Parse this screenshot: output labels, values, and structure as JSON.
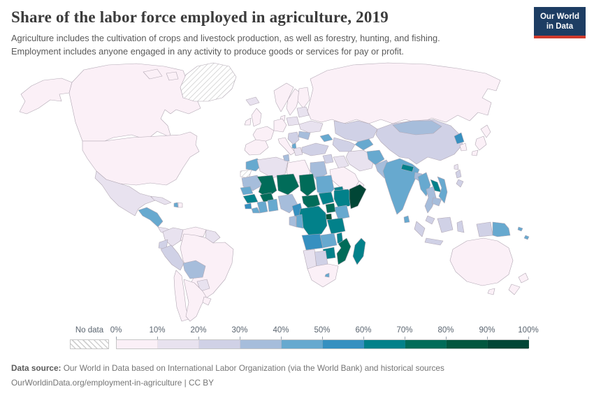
{
  "header": {
    "title": "Share of the labor force employed in agriculture, 2019",
    "subtitle_line1": "Agriculture includes the cultivation of crops and livestock production, as well as forestry, hunting, and fishing.",
    "subtitle_line2": "Employment includes anyone engaged in any activity to produce goods or services for pay or profit.",
    "logo_line1": "Our World",
    "logo_line2": "in Data",
    "logo_bg_color": "#1d3d63",
    "logo_accent_color": "#cf3a2c"
  },
  "legend": {
    "no_data_label": "No data",
    "tick_labels": [
      "0%",
      "10%",
      "20%",
      "30%",
      "40%",
      "50%",
      "60%",
      "70%",
      "80%",
      "90%",
      "100%"
    ],
    "bins": [
      {
        "range": "0-10%",
        "color": "#fbf0f7"
      },
      {
        "range": "10-20%",
        "color": "#e8e2ef"
      },
      {
        "range": "20-30%",
        "color": "#d0d1e6"
      },
      {
        "range": "30-40%",
        "color": "#a6bddb"
      },
      {
        "range": "40-50%",
        "color": "#67a9cf"
      },
      {
        "range": "50-60%",
        "color": "#3690c0"
      },
      {
        "range": "60-70%",
        "color": "#02818a"
      },
      {
        "range": "70-80%",
        "color": "#016c59"
      },
      {
        "range": "80-90%",
        "color": "#02573f"
      },
      {
        "range": "90-100%",
        "color": "#014636"
      }
    ]
  },
  "footer": {
    "datasource_label": "Data source:",
    "datasource_text": " Our World in Data based on International Labor Organization (via the World Bank) and historical sources",
    "url_line": "OurWorldinData.org/employment-in-agriculture | CC BY"
  },
  "chart_data": {
    "type": "choropleth",
    "title": "Share of the labor force employed in agriculture, 2019",
    "unit": "% of labor force",
    "bin_ranges": [
      "0-10%",
      "10-20%",
      "20-30%",
      "30-40%",
      "40-50%",
      "50-60%",
      "60-70%",
      "70-80%",
      "80-90%",
      "90-100%"
    ],
    "no_data_fill": "url(#hatch)",
    "no_data_regions": [
      "Greenland",
      "Western Sahara"
    ],
    "regions": {
      "united-states": {
        "label": "United States",
        "range": "0-10%",
        "color": "#fbf0f7"
      },
      "canada": {
        "label": "Canada",
        "range": "0-10%",
        "color": "#fbf0f7"
      },
      "greenland": {
        "label": "Greenland",
        "range": "No data",
        "color": "url(#hatch)"
      },
      "iceland": {
        "label": "Iceland",
        "range": "10-20%",
        "color": "#e8e2ef"
      },
      "mexico": {
        "label": "Mexico",
        "range": "10-20%",
        "color": "#e8e2ef"
      },
      "central-america": {
        "label": "Guatemala, Honduras & Nicaragua",
        "range": "40-50%",
        "color": "#67a9cf"
      },
      "costa-rica-panama": {
        "label": "Costa Rica & Panama",
        "range": "10-20%",
        "color": "#e8e2ef"
      },
      "cuba": {
        "label": "Cuba",
        "range": "10-20%",
        "color": "#e8e2ef"
      },
      "haiti": {
        "label": "Haiti",
        "range": "40-50%",
        "color": "#67a9cf"
      },
      "dominican-republic": {
        "label": "Dominican Republic",
        "range": "0-10%",
        "color": "#fbf0f7"
      },
      "colombia": {
        "label": "Colombia",
        "range": "10-20%",
        "color": "#e8e2ef"
      },
      "venezuela": {
        "label": "Venezuela",
        "range": "0-10%",
        "color": "#fbf0f7"
      },
      "guyanas": {
        "label": "Guyana & Suriname",
        "range": "10-20%",
        "color": "#e8e2ef"
      },
      "ecuador": {
        "label": "Ecuador",
        "range": "20-30%",
        "color": "#d0d1e6"
      },
      "peru": {
        "label": "Peru",
        "range": "20-30%",
        "color": "#d0d1e6"
      },
      "brazil": {
        "label": "Brazil",
        "range": "0-10%",
        "color": "#fbf0f7"
      },
      "bolivia": {
        "label": "Bolivia",
        "range": "30-40%",
        "color": "#a6bddb"
      },
      "paraguay": {
        "label": "Paraguay",
        "range": "10-20%",
        "color": "#e8e2ef"
      },
      "chile": {
        "label": "Chile",
        "range": "0-10%",
        "color": "#fbf0f7"
      },
      "argentina": {
        "label": "Argentina",
        "range": "0-10%",
        "color": "#fbf0f7"
      },
      "uruguay": {
        "label": "Uruguay",
        "range": "0-10%",
        "color": "#fbf0f7"
      },
      "united-kingdom": {
        "label": "United Kingdom",
        "range": "0-10%",
        "color": "#fbf0f7"
      },
      "ireland": {
        "label": "Ireland",
        "range": "0-10%",
        "color": "#fbf0f7"
      },
      "norway": {
        "label": "Norway",
        "range": "0-10%",
        "color": "#fbf0f7"
      },
      "sweden": {
        "label": "Sweden",
        "range": "0-10%",
        "color": "#fbf0f7"
      },
      "finland": {
        "label": "Finland",
        "range": "0-10%",
        "color": "#fbf0f7"
      },
      "denmark": {
        "label": "Denmark",
        "range": "0-10%",
        "color": "#fbf0f7"
      },
      "iberia": {
        "label": "Spain & Portugal",
        "range": "0-10%",
        "color": "#fbf0f7"
      },
      "france": {
        "label": "France",
        "range": "0-10%",
        "color": "#fbf0f7"
      },
      "central-europe": {
        "label": "Germany & Central Europe",
        "range": "0-10%",
        "color": "#fbf0f7"
      },
      "italy": {
        "label": "Italy",
        "range": "0-10%",
        "color": "#fbf0f7"
      },
      "poland": {
        "label": "Poland",
        "range": "10-20%",
        "color": "#e8e2ef"
      },
      "baltics": {
        "label": "Baltic states & Belarus",
        "range": "10-20%",
        "color": "#e8e2ef"
      },
      "ukraine": {
        "label": "Ukraine",
        "range": "10-20%",
        "color": "#e8e2ef"
      },
      "romania": {
        "label": "Romania & Moldova",
        "range": "30-40%",
        "color": "#a6bddb"
      },
      "balkans": {
        "label": "Balkans",
        "range": "20-30%",
        "color": "#d0d1e6"
      },
      "albania": {
        "label": "Albania",
        "range": "40-50%",
        "color": "#67a9cf"
      },
      "greece": {
        "label": "Greece",
        "range": "10-20%",
        "color": "#e8e2ef"
      },
      "russia": {
        "label": "Russia",
        "range": "0-10%",
        "color": "#fbf0f7"
      },
      "kazakhstan": {
        "label": "Kazakhstan",
        "range": "20-30%",
        "color": "#d0d1e6"
      },
      "uzbekistan-turkmenistan": {
        "label": "Uzbekistan & Turkmenistan",
        "range": "20-30%",
        "color": "#d0d1e6"
      },
      "kyrgyzstan-tajikistan": {
        "label": "Kyrgyzstan & Tajikistan",
        "range": "40-50%",
        "color": "#67a9cf"
      },
      "caucasus": {
        "label": "Georgia, Armenia & Azerbaijan",
        "range": "40-50%",
        "color": "#67a9cf"
      },
      "turkey": {
        "label": "Turkey",
        "range": "20-30%",
        "color": "#d0d1e6"
      },
      "levant": {
        "label": "Syria & Levant",
        "range": "20-30%",
        "color": "#d0d1e6"
      },
      "iraq": {
        "label": "Iraq",
        "range": "10-20%",
        "color": "#e8e2ef"
      },
      "iran": {
        "label": "Iran",
        "range": "10-20%",
        "color": "#e8e2ef"
      },
      "saudi-arabia": {
        "label": "Saudi Arabia",
        "range": "0-10%",
        "color": "#fbf0f7"
      },
      "yemen": {
        "label": "Yemen",
        "range": "30-40%",
        "color": "#a6bddb"
      },
      "oman": {
        "label": "Oman",
        "range": "0-10%",
        "color": "#fbf0f7"
      },
      "afghanistan": {
        "label": "Afghanistan",
        "range": "40-50%",
        "color": "#67a9cf"
      },
      "pakistan": {
        "label": "Pakistan",
        "range": "30-40%",
        "color": "#a6bddb"
      },
      "india": {
        "label": "India",
        "range": "40-50%",
        "color": "#67a9cf"
      },
      "nepal": {
        "label": "Nepal",
        "range": "60-70%",
        "color": "#02818a"
      },
      "bangladesh": {
        "label": "Bangladesh",
        "range": "30-40%",
        "color": "#a6bddb"
      },
      "sri-lanka": {
        "label": "Sri Lanka",
        "range": "40-50%",
        "color": "#67a9cf"
      },
      "china": {
        "label": "China",
        "range": "20-30%",
        "color": "#d0d1e6"
      },
      "mongolia": {
        "label": "Mongolia",
        "range": "30-40%",
        "color": "#a6bddb"
      },
      "north-korea": {
        "label": "North Korea",
        "range": "50-60%",
        "color": "#3690c0"
      },
      "south-korea": {
        "label": "South Korea",
        "range": "0-10%",
        "color": "#fbf0f7"
      },
      "japan": {
        "label": "Japan",
        "range": "0-10%",
        "color": "#fbf0f7"
      },
      "taiwan": {
        "label": "Taiwan",
        "range": "10-20%",
        "color": "#e8e2ef"
      },
      "myanmar": {
        "label": "Myanmar",
        "range": "40-50%",
        "color": "#67a9cf"
      },
      "thailand": {
        "label": "Thailand",
        "range": "30-40%",
        "color": "#a6bddb"
      },
      "laos": {
        "label": "Laos",
        "range": "60-70%",
        "color": "#02818a"
      },
      "vietnam": {
        "label": "Vietnam",
        "range": "40-50%",
        "color": "#67a9cf"
      },
      "cambodia": {
        "label": "Cambodia",
        "range": "30-40%",
        "color": "#a6bddb"
      },
      "malaysia": {
        "label": "Malaysia",
        "range": "20-30%",
        "color": "#d0d1e6"
      },
      "philippines": {
        "label": "Philippines",
        "range": "20-30%",
        "color": "#d0d1e6"
      },
      "indonesia": {
        "label": "Indonesia",
        "range": "20-30%",
        "color": "#d0d1e6"
      },
      "papua-new-guinea": {
        "label": "Papua New Guinea",
        "range": "40-50%",
        "color": "#67a9cf"
      },
      "solomon-islands": {
        "label": "Solomon Islands & Vanuatu",
        "range": "40-50%",
        "color": "#67a9cf"
      },
      "australia": {
        "label": "Australia",
        "range": "0-10%",
        "color": "#fbf0f7"
      },
      "new-zealand": {
        "label": "New Zealand",
        "range": "0-10%",
        "color": "#fbf0f7"
      },
      "morocco": {
        "label": "Morocco",
        "range": "40-50%",
        "color": "#67a9cf"
      },
      "western-sahara": {
        "label": "Western Sahara",
        "range": "No data",
        "color": "url(#hatch)"
      },
      "algeria": {
        "label": "Algeria",
        "range": "10-20%",
        "color": "#e8e2ef"
      },
      "tunisia": {
        "label": "Tunisia",
        "range": "30-40%",
        "color": "#a6bddb"
      },
      "libya": {
        "label": "Libya",
        "range": "0-10%",
        "color": "#fbf0f7"
      },
      "egypt": {
        "label": "Egypt",
        "range": "30-40%",
        "color": "#a6bddb"
      },
      "mauritania": {
        "label": "Mauritania",
        "range": "30-40%",
        "color": "#a6bddb"
      },
      "mali": {
        "label": "Mali",
        "range": "70-80%",
        "color": "#016c59"
      },
      "niger": {
        "label": "Niger",
        "range": "70-80%",
        "color": "#016c59"
      },
      "chad": {
        "label": "Chad",
        "range": "70-80%",
        "color": "#016c59"
      },
      "sudan": {
        "label": "Sudan",
        "range": "40-50%",
        "color": "#67a9cf"
      },
      "eritrea": {
        "label": "Eritrea",
        "range": "60-70%",
        "color": "#02818a"
      },
      "djibouti": {
        "label": "Djibouti",
        "range": "20-30%",
        "color": "#d0d1e6"
      },
      "senegal": {
        "label": "Senegal & Gambia",
        "range": "40-50%",
        "color": "#67a9cf"
      },
      "guinea": {
        "label": "Guinea",
        "range": "60-70%",
        "color": "#02818a"
      },
      "sierra-leone": {
        "label": "Sierra Leone",
        "range": "50-60%",
        "color": "#3690c0"
      },
      "liberia": {
        "label": "Liberia",
        "range": "40-50%",
        "color": "#67a9cf"
      },
      "ivory-coast": {
        "label": "Cote d'Ivoire",
        "range": "40-50%",
        "color": "#67a9cf"
      },
      "burkina-faso": {
        "label": "Burkina Faso",
        "range": "70-80%",
        "color": "#016c59"
      },
      "ghana-togo-benin": {
        "label": "Ghana, Togo & Benin",
        "range": "40-50%",
        "color": "#67a9cf"
      },
      "nigeria": {
        "label": "Nigeria",
        "range": "30-40%",
        "color": "#a6bddb"
      },
      "cameroon": {
        "label": "Cameroon",
        "range": "50-60%",
        "color": "#3690c0"
      },
      "central-african-republic": {
        "label": "Central African Republic",
        "range": "70-80%",
        "color": "#016c59"
      },
      "south-sudan": {
        "label": "South Sudan",
        "range": "60-70%",
        "color": "#02818a"
      },
      "ethiopia": {
        "label": "Ethiopia",
        "range": "60-70%",
        "color": "#02818a"
      },
      "somalia": {
        "label": "Somalia",
        "range": "90-100%",
        "color": "#014636"
      },
      "kenya": {
        "label": "Kenya",
        "range": "40-50%",
        "color": "#67a9cf"
      },
      "uganda": {
        "label": "Uganda",
        "range": "70-80%",
        "color": "#016c59"
      },
      "rwanda-burundi": {
        "label": "Rwanda & Burundi",
        "range": "80-90%",
        "color": "#02573f"
      },
      "dr-congo": {
        "label": "Democratic Republic of Congo",
        "range": "60-70%",
        "color": "#02818a"
      },
      "congo": {
        "label": "Congo",
        "range": "40-50%",
        "color": "#67a9cf"
      },
      "gabon": {
        "label": "Gabon",
        "range": "30-40%",
        "color": "#a6bddb"
      },
      "tanzania": {
        "label": "Tanzania",
        "range": "60-70%",
        "color": "#02818a"
      },
      "angola": {
        "label": "Angola",
        "range": "50-60%",
        "color": "#3690c0"
      },
      "zambia": {
        "label": "Zambia",
        "range": "40-50%",
        "color": "#67a9cf"
      },
      "malawi": {
        "label": "Malawi",
        "range": "60-70%",
        "color": "#02818a"
      },
      "mozambique": {
        "label": "Mozambique",
        "range": "70-80%",
        "color": "#016c59"
      },
      "zimbabwe": {
        "label": "Zimbabwe",
        "range": "60-70%",
        "color": "#02818a"
      },
      "botswana": {
        "label": "Botswana",
        "range": "20-30%",
        "color": "#d0d1e6"
      },
      "namibia": {
        "label": "Namibia",
        "range": "10-20%",
        "color": "#e8e2ef"
      },
      "south-africa": {
        "label": "South Africa",
        "range": "0-10%",
        "color": "#fbf0f7"
      },
      "lesotho": {
        "label": "Lesotho & Eswatini",
        "range": "40-50%",
        "color": "#67a9cf"
      },
      "madagascar": {
        "label": "Madagascar",
        "range": "60-70%",
        "color": "#02818a"
      }
    }
  }
}
